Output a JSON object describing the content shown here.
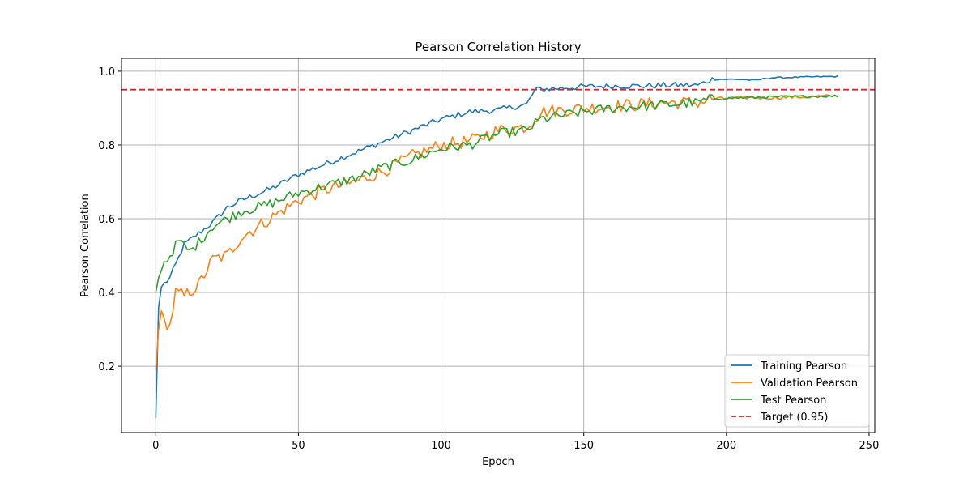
{
  "chart_data": {
    "type": "line",
    "title": "Pearson Correlation History",
    "xlabel": "Epoch",
    "ylabel": "Pearson Correlation",
    "xlim": [
      -12,
      252
    ],
    "ylim": [
      0.02,
      1.035
    ],
    "xticks": [
      0,
      50,
      100,
      150,
      200,
      250
    ],
    "yticks": [
      0.2,
      0.4,
      0.6,
      0.8,
      1.0
    ],
    "grid": true,
    "legend_position": "lower-right",
    "epochs": 240,
    "target": {
      "name": "Target (0.95)",
      "value": 0.95,
      "color": "#d62728"
    },
    "series": [
      {
        "name": "Training Pearson",
        "color": "#1f77b4",
        "anchors": [
          [
            0,
            0.06
          ],
          [
            1,
            0.36
          ],
          [
            2,
            0.415
          ],
          [
            5,
            0.44
          ],
          [
            10,
            0.53
          ],
          [
            20,
            0.59
          ],
          [
            25,
            0.63
          ],
          [
            30,
            0.65
          ],
          [
            40,
            0.68
          ],
          [
            50,
            0.72
          ],
          [
            60,
            0.75
          ],
          [
            70,
            0.78
          ],
          [
            80,
            0.81
          ],
          [
            90,
            0.84
          ],
          [
            100,
            0.87
          ],
          [
            110,
            0.89
          ],
          [
            120,
            0.895
          ],
          [
            130,
            0.91
          ],
          [
            133,
            0.95
          ],
          [
            150,
            0.958
          ],
          [
            160,
            0.96
          ],
          [
            170,
            0.96
          ],
          [
            180,
            0.962
          ],
          [
            190,
            0.962
          ],
          [
            195,
            0.978
          ],
          [
            205,
            0.978
          ],
          [
            210,
            0.975
          ],
          [
            215,
            0.982
          ],
          [
            239,
            0.986
          ]
        ],
        "noise": 0.008
      },
      {
        "name": "Validation Pearson",
        "color": "#ff7f0e",
        "anchors": [
          [
            0,
            0.19
          ],
          [
            1,
            0.3
          ],
          [
            2,
            0.35
          ],
          [
            3,
            0.32
          ],
          [
            5,
            0.31
          ],
          [
            7,
            0.4
          ],
          [
            10,
            0.39
          ],
          [
            15,
            0.42
          ],
          [
            20,
            0.49
          ],
          [
            25,
            0.5
          ],
          [
            30,
            0.55
          ],
          [
            40,
            0.6
          ],
          [
            50,
            0.65
          ],
          [
            60,
            0.68
          ],
          [
            70,
            0.7
          ],
          [
            80,
            0.73
          ],
          [
            90,
            0.77
          ],
          [
            100,
            0.8
          ],
          [
            110,
            0.81
          ],
          [
            120,
            0.84
          ],
          [
            130,
            0.85
          ],
          [
            135,
            0.89
          ],
          [
            150,
            0.9
          ],
          [
            160,
            0.905
          ],
          [
            170,
            0.91
          ],
          [
            180,
            0.915
          ],
          [
            190,
            0.915
          ],
          [
            195,
            0.925
          ],
          [
            205,
            0.928
          ],
          [
            215,
            0.928
          ],
          [
            239,
            0.933
          ]
        ],
        "noise": 0.018
      },
      {
        "name": "Test Pearson",
        "color": "#2ca02c",
        "anchors": [
          [
            0,
            0.4
          ],
          [
            1,
            0.44
          ],
          [
            3,
            0.48
          ],
          [
            5,
            0.5
          ],
          [
            8,
            0.54
          ],
          [
            12,
            0.51
          ],
          [
            20,
            0.58
          ],
          [
            30,
            0.62
          ],
          [
            40,
            0.64
          ],
          [
            50,
            0.67
          ],
          [
            60,
            0.69
          ],
          [
            70,
            0.71
          ],
          [
            80,
            0.74
          ],
          [
            90,
            0.76
          ],
          [
            100,
            0.79
          ],
          [
            110,
            0.8
          ],
          [
            120,
            0.83
          ],
          [
            130,
            0.84
          ],
          [
            135,
            0.87
          ],
          [
            150,
            0.89
          ],
          [
            160,
            0.9
          ],
          [
            170,
            0.905
          ],
          [
            180,
            0.91
          ],
          [
            190,
            0.915
          ],
          [
            195,
            0.925
          ],
          [
            205,
            0.928
          ],
          [
            215,
            0.93
          ],
          [
            239,
            0.933
          ]
        ],
        "noise": 0.014
      }
    ]
  }
}
